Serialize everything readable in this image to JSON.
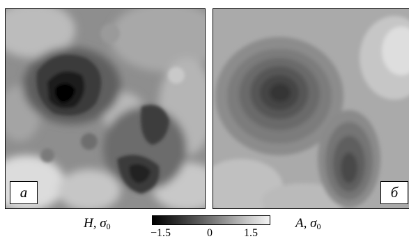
{
  "figure": {
    "panel_a": {
      "label": "а"
    },
    "panel_b": {
      "label": "б"
    },
    "colorbar": {
      "left_name": "H",
      "right_name": "A",
      "unit_symbol": "σ",
      "unit_subscript": "0",
      "ticks": [
        "−1.5",
        "0",
        "1.5"
      ],
      "range": [
        -2,
        2
      ]
    }
  }
}
